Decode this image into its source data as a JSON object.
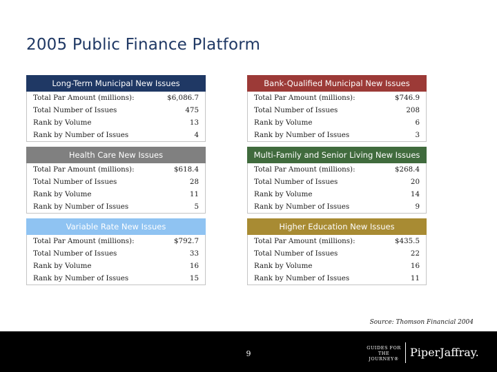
{
  "title": "2005 Public Finance Platform",
  "panels": [
    {
      "header": "Long-Term Municipal New Issues",
      "header_color": "#1f3864",
      "rows": [
        {
          "label": "Total Par Amount (millions):",
          "value": "$6,086.7"
        },
        {
          "label": "Total Number of Issues",
          "value": "475"
        },
        {
          "label": "Rank by Volume",
          "value": "13"
        },
        {
          "label": "Rank by Number of Issues",
          "value": "4"
        }
      ]
    },
    {
      "header": "Bank-Qualified Municipal New Issues",
      "header_color": "#9c3a37",
      "rows": [
        {
          "label": "Total Par Amount (millions):",
          "value": "$746.9"
        },
        {
          "label": "Total Number of Issues",
          "value": "208"
        },
        {
          "label": "Rank by Volume",
          "value": "6"
        },
        {
          "label": "Rank by Number of Issues",
          "value": "3"
        }
      ]
    },
    {
      "header": "Health Care New Issues",
      "header_color": "#808080",
      "rows": [
        {
          "label": "Total Par Amount (millions):",
          "value": "$618.4"
        },
        {
          "label": "Total Number of Issues",
          "value": "28"
        },
        {
          "label": "Rank by Volume",
          "value": "11"
        },
        {
          "label": "Rank by Number of Issues",
          "value": "5"
        }
      ]
    },
    {
      "header": "Multi-Family and Senior Living New Issues",
      "header_color": "#406b3d",
      "rows": [
        {
          "label": "Total Par Amount (millions):",
          "value": "$268.4"
        },
        {
          "label": "Total Number of Issues",
          "value": "20"
        },
        {
          "label": "Rank by Volume",
          "value": "14"
        },
        {
          "label": "Rank by Number of Issues",
          "value": "9"
        }
      ]
    },
    {
      "header": "Variable Rate New Issues",
      "header_color": "#8fc3f2",
      "rows": [
        {
          "label": "Total Par Amount (millions):",
          "value": "$792.7"
        },
        {
          "label": "Total Number of Issues",
          "value": "33"
        },
        {
          "label": "Rank by Volume",
          "value": "16"
        },
        {
          "label": "Rank by Number of Issues",
          "value": "15"
        }
      ]
    },
    {
      "header": "Higher Education New Issues",
      "header_color": "#a88b33",
      "rows": [
        {
          "label": "Total Par Amount (millions):",
          "value": "$435.5"
        },
        {
          "label": "Total Number of Issues",
          "value": "22"
        },
        {
          "label": "Rank by Volume",
          "value": "16"
        },
        {
          "label": "Rank by Number of Issues",
          "value": "11"
        }
      ]
    }
  ],
  "source": "Source: Thomson Financial 2004",
  "page_number": "9",
  "logo": {
    "tagline_line1": "GUIDES FOR",
    "tagline_line2": "THE JOURNEY®",
    "brand": "PiperJaffray."
  }
}
